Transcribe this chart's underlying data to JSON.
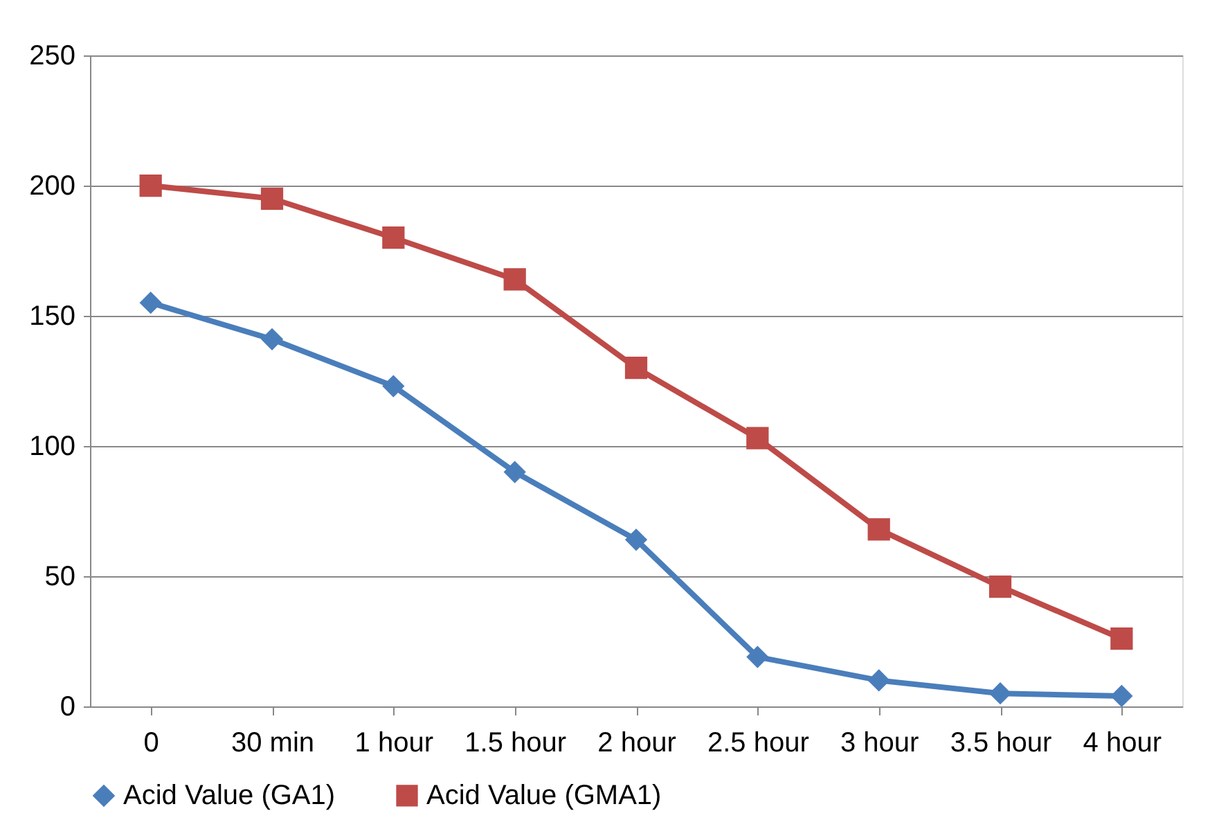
{
  "chart_data": {
    "type": "line",
    "categories": [
      "0",
      "30 min",
      "1 hour",
      "1.5 hour",
      "2 hour",
      "2.5 hour",
      "3 hour",
      "3.5 hour",
      "4 hour"
    ],
    "series": [
      {
        "name": "Acid Value (GA1)",
        "color": "#4a7ebb",
        "marker": "diamond",
        "values": [
          155,
          141,
          123,
          90,
          64,
          19,
          10,
          5,
          4
        ]
      },
      {
        "name": "Acid Value (GMA1)",
        "color": "#be4b48",
        "marker": "square",
        "values": [
          200,
          195,
          180,
          164,
          130,
          103,
          68,
          46,
          26
        ]
      }
    ],
    "ylim": [
      0,
      250
    ],
    "yticks": [
      0,
      50,
      100,
      150,
      200,
      250
    ],
    "grid": "y",
    "legend": "bottom",
    "line_style": "solid"
  }
}
